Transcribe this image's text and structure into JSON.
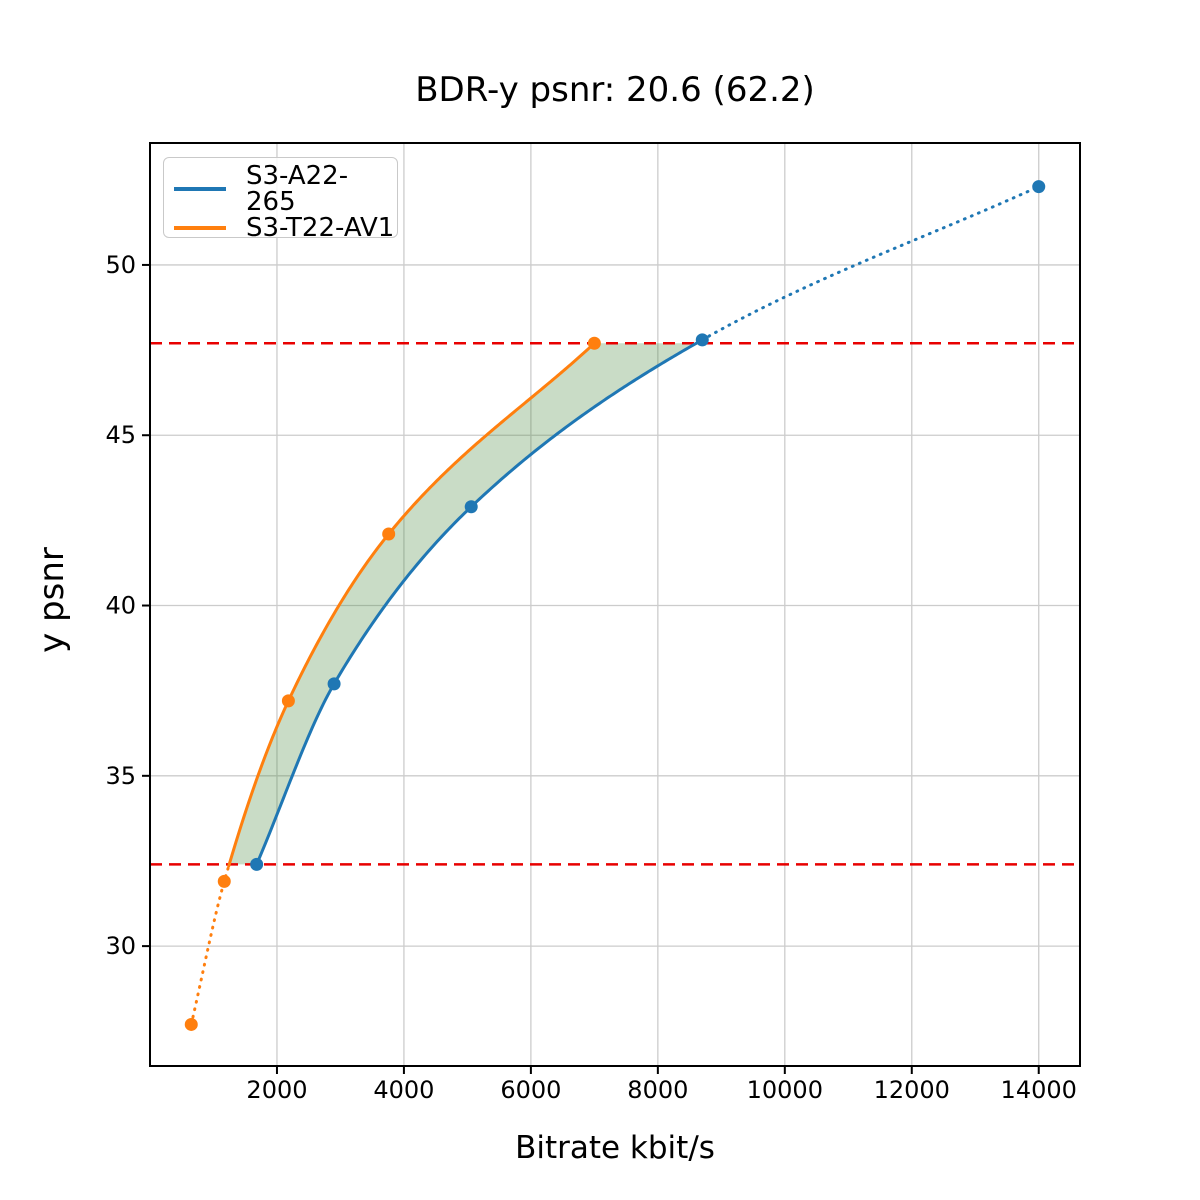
{
  "chart_data": {
    "type": "line",
    "title": "BDR-y psnr: 20.6 (62.2)",
    "xlabel": "Bitrate kbit/s",
    "ylabel": "y psnr",
    "xlim": [
      0,
      14650
    ],
    "ylim": [
      26.48,
      53.58
    ],
    "x_ticks": [
      2000,
      4000,
      6000,
      8000,
      10000,
      12000,
      14000
    ],
    "y_ticks": [
      30,
      35,
      40,
      45,
      50
    ],
    "grid": true,
    "grid_color": "#cccccc",
    "legend_position": "upper-left",
    "series": [
      {
        "name": "S3-A22-265",
        "color": "#1f77b4",
        "points": [
          [
            1680,
            32.4
          ],
          [
            2900,
            37.7
          ],
          [
            5060,
            42.9
          ],
          [
            8700,
            47.8
          ],
          [
            14000,
            52.3
          ]
        ],
        "solid_x_range": [
          1680,
          8700
        ],
        "dotted_x_range": [
          8700,
          14000
        ]
      },
      {
        "name": "S3-T22-AV1",
        "color": "#ff7f0e",
        "points": [
          [
            650,
            27.7
          ],
          [
            1170,
            31.9
          ],
          [
            2180,
            37.2
          ],
          [
            3760,
            42.1
          ],
          [
            7000,
            47.7
          ]
        ],
        "solid_x_range": [
          1240,
          7000
        ],
        "dotted_x_range": [
          650,
          1240
        ]
      }
    ],
    "reference_lines": {
      "style": "dashed",
      "color": "#e80000",
      "upper": 47.7,
      "lower": 32.4
    },
    "shaded_region": {
      "between": [
        "S3-T22-AV1",
        "S3-A22-265"
      ],
      "y_range": [
        32.4,
        47.7
      ],
      "color": "#4c8c42",
      "opacity": 0.3
    }
  }
}
